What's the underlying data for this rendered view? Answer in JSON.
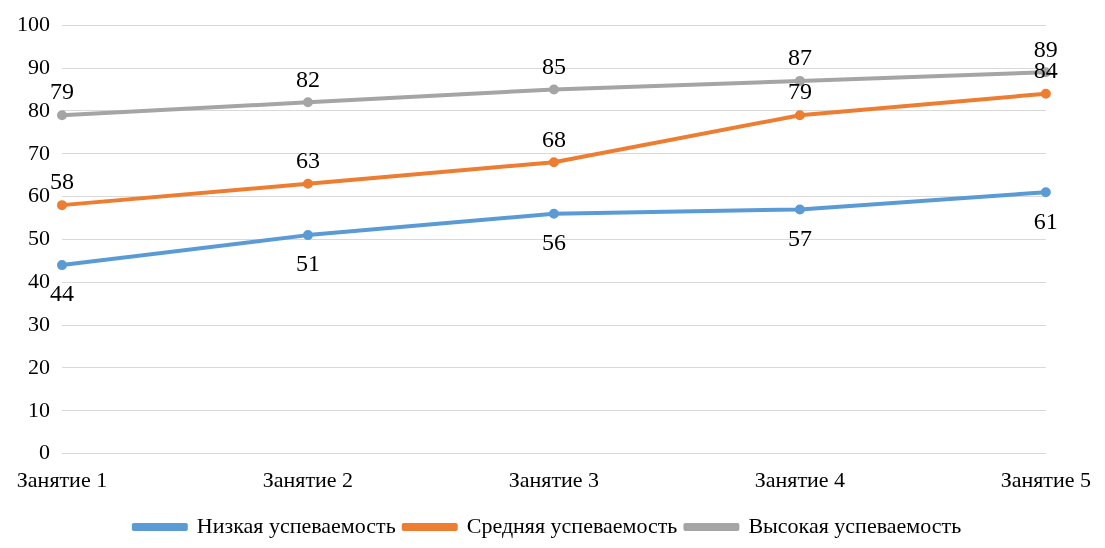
{
  "chart_data": {
    "type": "line",
    "categories": [
      "Занятие 1",
      "Занятие 2",
      "Занятие 3",
      "Занятие 4",
      "Занятие 5"
    ],
    "series": [
      {
        "name": "Низкая успеваемость",
        "color": "#5b9bd5",
        "values": [
          44,
          51,
          56,
          57,
          61
        ]
      },
      {
        "name": "Средняя успеваемость",
        "color": "#ed7d31",
        "values": [
          58,
          63,
          68,
          79,
          84
        ]
      },
      {
        "name": "Высокая успеваемость",
        "color": "#a5a5a5",
        "values": [
          79,
          82,
          85,
          87,
          89
        ]
      }
    ],
    "ylim": [
      0,
      100
    ],
    "yticks": [
      0,
      10,
      20,
      30,
      40,
      50,
      60,
      70,
      80,
      90,
      100
    ],
    "grid": "y",
    "legend": "bottom",
    "marker": "circle",
    "line_style": "solid",
    "data_labels": true
  }
}
